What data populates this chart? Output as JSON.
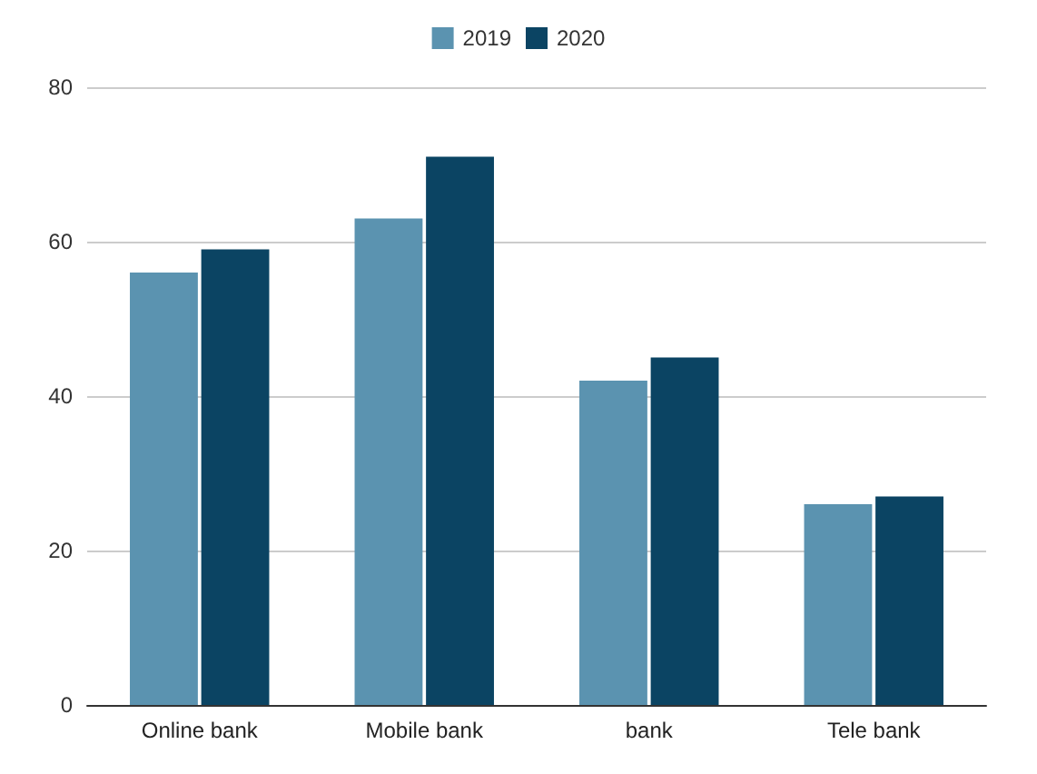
{
  "chart_data": {
    "type": "bar",
    "categories": [
      "Online bank",
      "Mobile bank",
      "bank",
      "Tele bank"
    ],
    "series": [
      {
        "name": "2019",
        "color": "#5b93b0",
        "values": [
          56,
          63,
          42,
          26
        ]
      },
      {
        "name": "2020",
        "color": "#0b4463",
        "values": [
          59,
          71,
          45,
          27
        ]
      }
    ],
    "ylim": [
      0,
      80
    ],
    "yticks": [
      0,
      20,
      40,
      60,
      80
    ],
    "grid": "y",
    "legend": "top"
  }
}
